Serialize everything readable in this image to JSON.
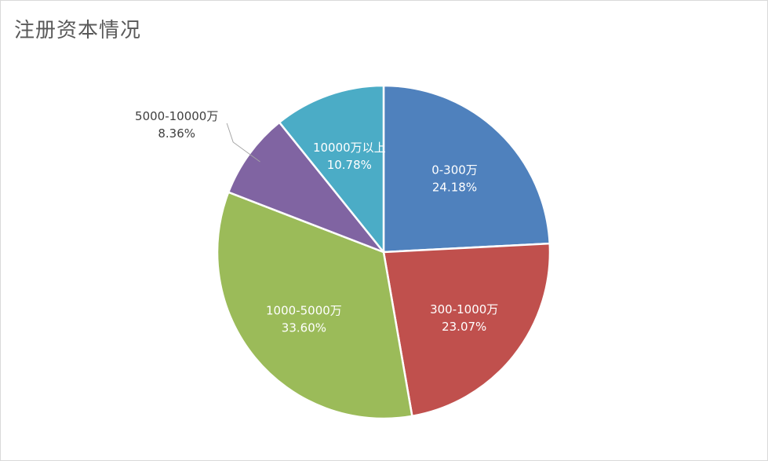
{
  "chart_data": {
    "type": "pie",
    "title": "注册资本情况",
    "start_angle_deg": 0,
    "direction": "clockwise",
    "slices": [
      {
        "label": "0-300万",
        "value": 24.18,
        "percent_text": "24.18%",
        "color": "#4f81bd",
        "label_color": "#ffffff",
        "label_position": "inside"
      },
      {
        "label": "300-1000万",
        "value": 23.07,
        "percent_text": "23.07%",
        "color": "#c0504d",
        "label_color": "#ffffff",
        "label_position": "inside"
      },
      {
        "label": "1000-5000万",
        "value": 33.6,
        "percent_text": "33.60%",
        "color": "#9bbb59",
        "label_color": "#ffffff",
        "label_position": "inside"
      },
      {
        "label": "5000-10000万",
        "value": 8.36,
        "percent_text": "8.36%",
        "color": "#8064a2",
        "label_color": "#404040",
        "label_position": "outside"
      },
      {
        "label": "10000万以上",
        "value": 10.78,
        "percent_text": "10.78%",
        "color": "#4bacc6",
        "label_color": "#ffffff",
        "label_position": "inside"
      }
    ],
    "legend": "none"
  }
}
